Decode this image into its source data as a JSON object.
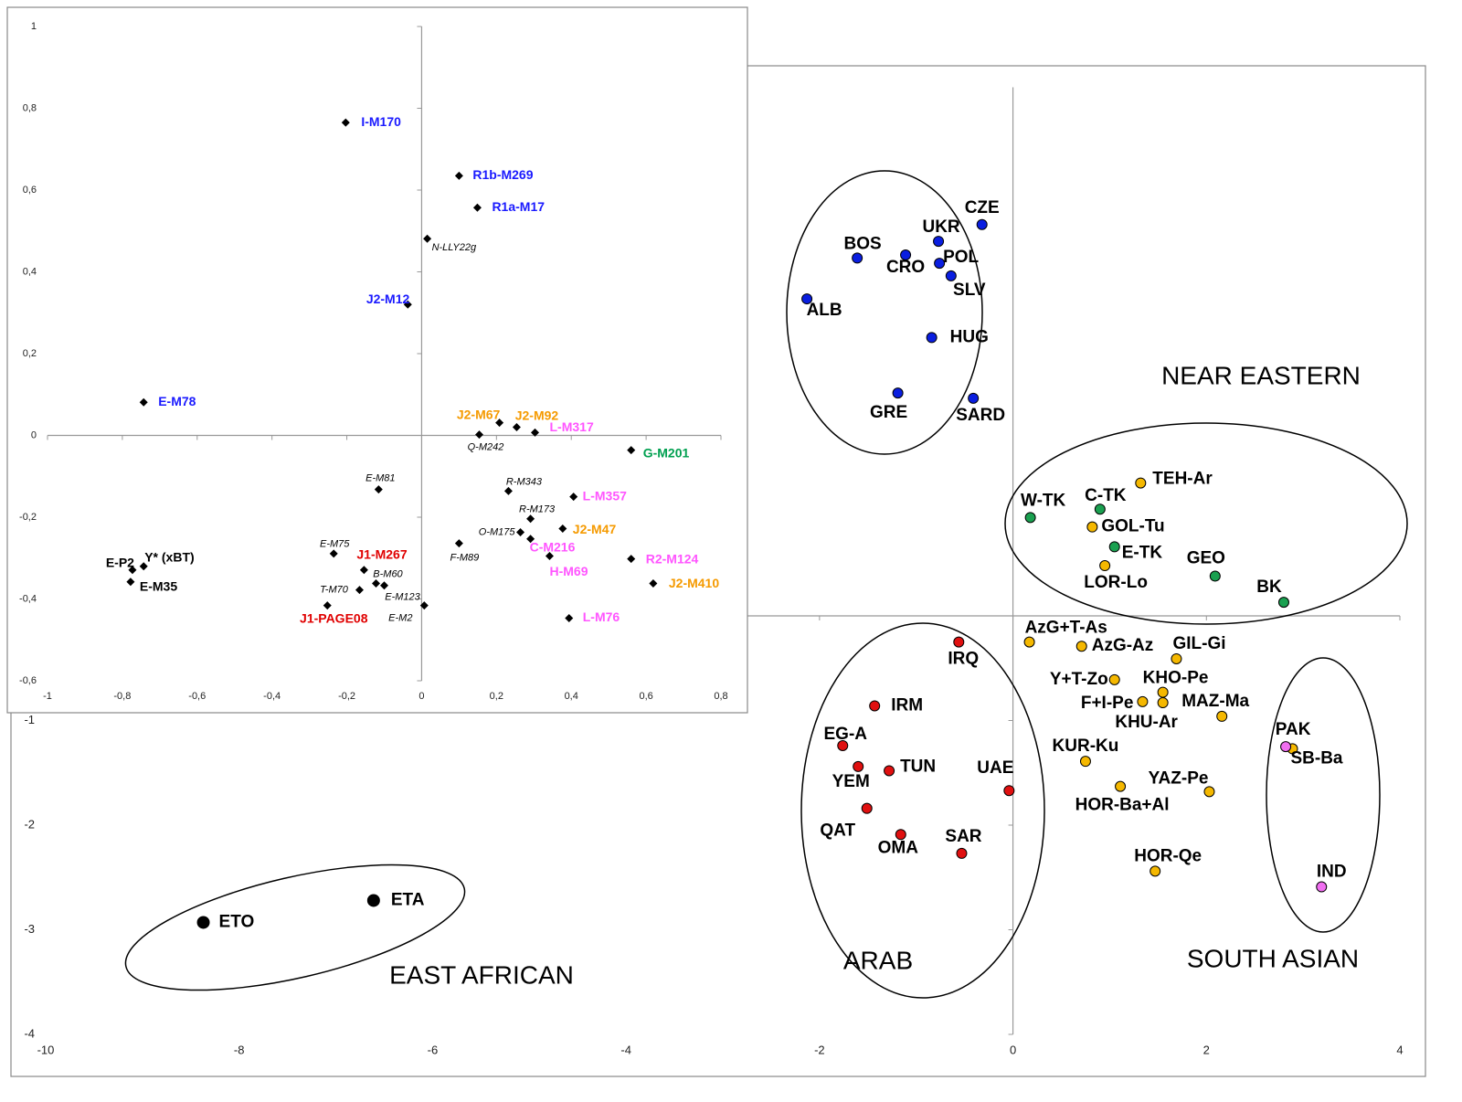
{
  "chart_data": [
    {
      "type": "scatter",
      "xlim": [
        -10,
        4
      ],
      "xticks": [
        -10,
        -8,
        -6,
        -4,
        -2,
        0,
        2,
        4
      ],
      "ylim": [
        -4,
        5
      ],
      "yticks": [
        -4,
        -3,
        -2,
        -1
      ],
      "annotations": [
        "NEAR EASTERN",
        "ARAB",
        "SOUTH ASIAN",
        "EAST AFRICAN"
      ],
      "series": [
        {
          "color": "#0a1ee0",
          "label_color": "#000000",
          "labels": [
            "CZE",
            "UKR",
            "BOS",
            "CRO",
            "POL",
            "SLV",
            "ALB",
            "HUG",
            "GRE",
            "SARD"
          ],
          "x": [
            -0.32,
            -0.77,
            -1.61,
            -1.11,
            -0.76,
            -0.64,
            -2.13,
            -0.84,
            -1.19,
            -0.41
          ],
          "values": [
            3.74,
            3.58,
            3.42,
            3.45,
            3.37,
            3.25,
            3.03,
            2.66,
            2.13,
            2.08
          ]
        },
        {
          "color": "#1aa050",
          "label_color": "#000000",
          "labels": [
            "W-TK",
            "C-TK",
            "E-TK",
            "GEO",
            "BK"
          ],
          "x": [
            0.18,
            0.9,
            1.05,
            2.09,
            2.8
          ],
          "values": [
            0.94,
            1.02,
            0.66,
            0.38,
            0.13
          ]
        },
        {
          "color": "#f5b800",
          "label_color": "#000000",
          "labels": [
            "TEH-Ar",
            "GOL-Tu",
            "LOR-Lo",
            "AzG+T-As",
            "AzG-Az",
            "GIL-Gi",
            "Y+T-Zo",
            "KHO-Pe",
            "F+I-Pe",
            "KHU-Ar",
            "MAZ-Ma",
            "KUR-Ku",
            "YAZ-Pe",
            "HOR-Ba+Al",
            "HOR-Qe",
            "SB-Ba"
          ],
          "x": [
            1.32,
            0.82,
            0.95,
            0.17,
            0.71,
            1.69,
            1.05,
            1.55,
            1.34,
            1.55,
            2.16,
            0.75,
            2.03,
            1.11,
            1.47,
            2.89
          ],
          "values": [
            1.27,
            0.85,
            0.48,
            -0.25,
            -0.29,
            -0.41,
            -0.61,
            -0.73,
            -0.82,
            -0.83,
            -0.96,
            -1.39,
            -1.68,
            -1.63,
            -2.44,
            -1.27
          ]
        },
        {
          "color": "#f06ef0",
          "label_color": "#000000",
          "labels": [
            "PAK",
            "IND"
          ],
          "x": [
            2.82,
            3.19
          ],
          "values": [
            -1.25,
            -2.59
          ]
        },
        {
          "color": "#e01010",
          "label_color": "#000000",
          "labels": [
            "IRQ",
            "IRM",
            "EG-A",
            "YEM",
            "TUN",
            "UAE",
            "QAT",
            "OMA",
            "SAR"
          ],
          "x": [
            -0.56,
            -1.43,
            -1.76,
            -1.6,
            -1.28,
            -0.04,
            -1.51,
            -1.16,
            -0.53
          ],
          "values": [
            -0.25,
            -0.86,
            -1.24,
            -1.44,
            -1.48,
            -1.67,
            -1.84,
            -2.09,
            -2.27
          ]
        },
        {
          "color": "#000000",
          "label_color": "#000000",
          "labels": [
            "ETO",
            "ETA"
          ],
          "x": [
            -8.37,
            -6.61
          ],
          "values": [
            -2.93,
            -2.72
          ]
        }
      ]
    },
    {
      "type": "scatter",
      "xlim": [
        -1,
        0.8
      ],
      "xticks": [
        -1,
        {
          "value": -0.8,
          "label": "-0,8"
        },
        {
          "value": -0.6,
          "label": "-0,6"
        },
        {
          "value": -0.4,
          "label": "-0,4"
        },
        {
          "value": -0.2,
          "label": "-0,2"
        },
        0,
        {
          "value": 0.2,
          "label": "0,2"
        },
        {
          "value": 0.4,
          "label": "0,4"
        },
        {
          "value": 0.6,
          "label": "0,6"
        },
        {
          "value": 0.8,
          "label": "0,8"
        }
      ],
      "ylim": [
        -0.6,
        1
      ],
      "yticks": [
        {
          "value": -0.6,
          "label": "-0,6"
        },
        {
          "value": -0.4,
          "label": "-0,4"
        },
        {
          "value": -0.2,
          "label": "-0,2"
        },
        0,
        {
          "value": 0.2,
          "label": "0,2"
        },
        {
          "value": 0.4,
          "label": "0,4"
        },
        {
          "value": 0.6,
          "label": "0,6"
        },
        {
          "value": 0.8,
          "label": "0,8"
        },
        1
      ],
      "series": [
        {
          "color": "#000000",
          "label_color": "#1a1aff",
          "italic": false,
          "labels": [
            "I-M170",
            "R1b-M269",
            "R1a-M17",
            "J2-M12",
            "E-M78"
          ],
          "x": [
            -0.203,
            0.1,
            0.149,
            -0.037,
            -0.743
          ],
          "values": [
            0.765,
            0.635,
            0.557,
            0.32,
            0.081
          ]
        },
        {
          "color": "#000000",
          "label_color": "#f59a00",
          "italic": false,
          "labels": [
            "J2-M67",
            "J2-M92",
            "J2-M47",
            "J2-M410"
          ],
          "x": [
            0.208,
            0.254,
            0.377,
            0.619
          ],
          "values": [
            0.031,
            0.02,
            -0.228,
            -0.362
          ]
        },
        {
          "color": "#000000",
          "label_color": "#ff55ff",
          "italic": false,
          "labels": [
            "L-M317",
            "L-M357",
            "C-M216",
            "H-M69",
            "R2-M124",
            "L-M76"
          ],
          "x": [
            0.303,
            0.406,
            0.291,
            0.342,
            0.56,
            0.394
          ],
          "values": [
            0.007,
            -0.15,
            -0.253,
            -0.295,
            -0.302,
            -0.447
          ]
        },
        {
          "color": "#000000",
          "label_color": "#00a050",
          "italic": false,
          "labels": [
            "G-M201"
          ],
          "x": [
            0.56
          ],
          "values": [
            -0.036
          ]
        },
        {
          "color": "#000000",
          "label_color": "#e00000",
          "italic": false,
          "labels": [
            "J1-M267",
            "J1-PAGE08"
          ],
          "x": [
            -0.154,
            -0.252
          ],
          "values": [
            -0.329,
            -0.416
          ]
        },
        {
          "color": "#000000",
          "label_color": "#000000",
          "italic": false,
          "labels": [
            "Y* (xBT)",
            "E-P2",
            "E-M35"
          ],
          "x": [
            -0.743,
            -0.773,
            -0.778
          ],
          "values": [
            -0.32,
            -0.329,
            -0.358
          ]
        },
        {
          "color": "#000000",
          "label_color": "#000000",
          "italic": true,
          "labels": [
            "N-LLY22g",
            "Q-M242",
            "E-M81",
            "R-M343",
            "R-M173",
            "O-M175",
            "F-M89",
            "E-M75",
            "B-M60",
            "E-M123",
            "T-M70",
            "E-M2"
          ],
          "x": [
            0.015,
            0.154,
            -0.115,
            0.232,
            0.291,
            0.264,
            0.1,
            -0.235,
            -0.122,
            -0.1,
            -0.166,
            0.007
          ],
          "values": [
            0.481,
            0.002,
            -0.132,
            -0.136,
            -0.204,
            -0.237,
            -0.264,
            -0.289,
            -0.362,
            -0.367,
            -0.378,
            -0.416
          ]
        }
      ]
    }
  ]
}
